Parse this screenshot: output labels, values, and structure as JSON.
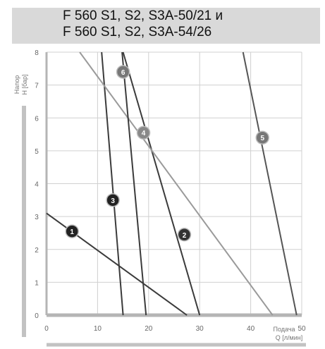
{
  "title": {
    "line1": "F 560 S1, S2, S3A-50/21 и",
    "line2": "F 560 S1, S2, S3A-54/26"
  },
  "chart_data": {
    "type": "line",
    "title": "F 560 S1, S2, S3A-50/21 и F 560 S1, S2, S3A-54/26",
    "ylabel_line1": "Напор",
    "ylabel_line2": "H [бар]",
    "xlabel_line1": "Подача",
    "xlabel_line2": "Q [л/мин]",
    "xlim": [
      0,
      50
    ],
    "ylim": [
      0,
      8
    ],
    "x_ticks": [
      "0",
      "10",
      "20",
      "30",
      "40",
      "50"
    ],
    "y_ticks": [
      "0",
      "1",
      "2",
      "3",
      "4",
      "5",
      "6",
      "7",
      "8"
    ],
    "grid": true,
    "series": [
      {
        "name": "1",
        "points": [
          [
            0,
            3.1
          ],
          [
            27.5,
            0
          ]
        ],
        "label_at": [
          5,
          2.55
        ]
      },
      {
        "name": "2",
        "points": [
          [
            15,
            8
          ],
          [
            30,
            0
          ]
        ],
        "label_at": [
          27,
          2.45
        ]
      },
      {
        "name": "3",
        "points": [
          [
            10.8,
            8
          ],
          [
            15,
            0
          ]
        ],
        "label_at": [
          13,
          3.5
        ]
      },
      {
        "name": "4",
        "points": [
          [
            6.5,
            8
          ],
          [
            44.3,
            0
          ]
        ],
        "label_at": [
          19,
          5.55
        ]
      },
      {
        "name": "5",
        "points": [
          [
            38.5,
            8
          ],
          [
            49,
            0
          ]
        ],
        "label_at": [
          42.3,
          5.4
        ]
      },
      {
        "name": "6",
        "points": [
          [
            14.8,
            8
          ],
          [
            19.5,
            0
          ]
        ],
        "label_at": [
          15,
          7.4
        ]
      }
    ]
  }
}
